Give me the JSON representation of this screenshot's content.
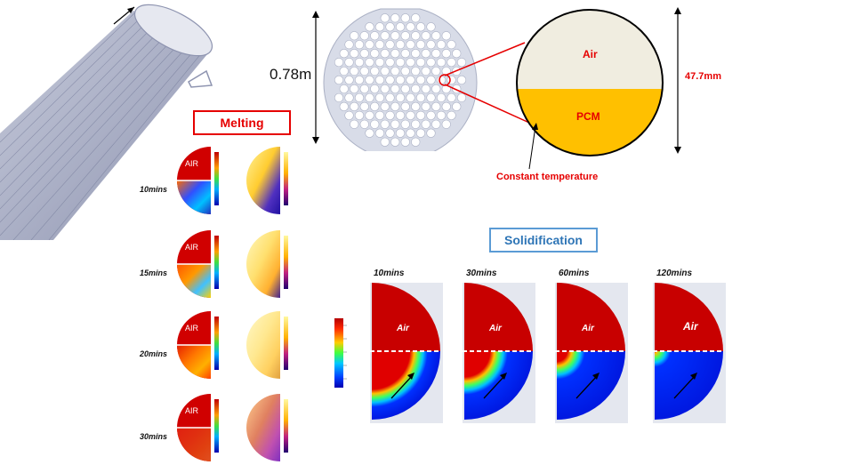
{
  "labels": {
    "diameter_big": "0.78m",
    "diameter_small": "47.7mm",
    "air": "Air",
    "pcm": "PCM",
    "constant_temperature": "Constant temperature",
    "melting_title": "Melting",
    "solidification_title": "Solidification",
    "air_upper": "AIR"
  },
  "melting": {
    "time_labels": [
      "10mins",
      "15mins",
      "20mins",
      "30mins"
    ]
  },
  "solidification": {
    "time_labels": [
      "10mins",
      "30mins",
      "60mins",
      "120mins"
    ],
    "front_fraction": [
      0.35,
      0.55,
      0.8,
      1.0
    ]
  },
  "colors": {
    "air": "#f0ede0",
    "pcm": "#ffc000",
    "red": "#e60000",
    "blue_title": "#5b9bd5",
    "mesh": "#9aa0b8",
    "plate": "#d8dce8"
  }
}
